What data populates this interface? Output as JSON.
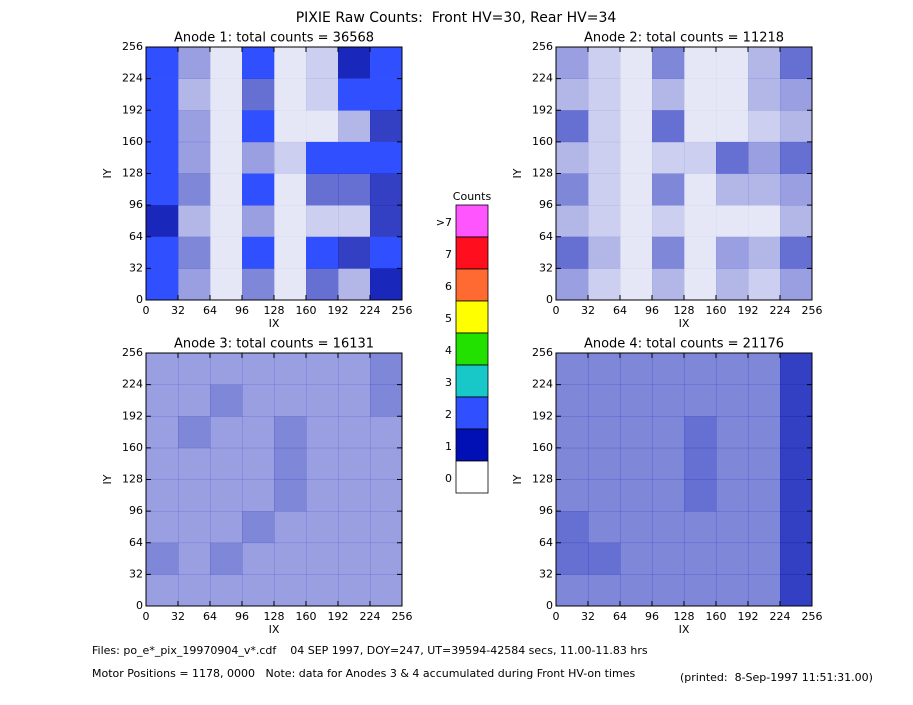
{
  "title": "PIXIE Raw Counts:  Front HV=30, Rear HV=34",
  "chart_data": [
    {
      "type": "heatmap",
      "title": "Anode 1: total counts = 36568",
      "x_label": "IX",
      "y_label": "IY",
      "xlim": [
        0,
        256
      ],
      "ylim": [
        0,
        256
      ],
      "xticks": [
        0,
        32,
        64,
        96,
        128,
        160,
        192,
        224,
        256
      ],
      "yticks": [
        0,
        32,
        64,
        96,
        128,
        160,
        192,
        224,
        256
      ],
      "values": [
        [
          1.6,
          0.4,
          0.1,
          1.2,
          0.1,
          0.2,
          0.9,
          1.3
        ],
        [
          1.0,
          0.3,
          0.1,
          0.6,
          0.1,
          0.2,
          1.0,
          1.0
        ],
        [
          1.5,
          0.4,
          0.1,
          1.3,
          0.1,
          0.1,
          0.3,
          0.8
        ],
        [
          1.0,
          0.4,
          0.1,
          0.4,
          0.2,
          1.3,
          1.2,
          1.4
        ],
        [
          1.5,
          0.5,
          0.1,
          1.2,
          0.1,
          0.6,
          0.6,
          0.8
        ],
        [
          0.9,
          0.3,
          0.1,
          0.4,
          0.1,
          0.2,
          0.2,
          0.8
        ],
        [
          1.6,
          0.5,
          0.1,
          1.2,
          0.1,
          1.1,
          0.8,
          1.2
        ],
        [
          1.1,
          0.4,
          0.1,
          0.5,
          0.1,
          0.6,
          0.3,
          0.9
        ]
      ]
    },
    {
      "type": "heatmap",
      "title": "Anode 2: total counts = 11218",
      "x_label": "IX",
      "y_label": "IY",
      "xlim": [
        0,
        256
      ],
      "ylim": [
        0,
        256
      ],
      "xticks": [
        0,
        32,
        64,
        96,
        128,
        160,
        192,
        224,
        256
      ],
      "yticks": [
        0,
        32,
        64,
        96,
        128,
        160,
        192,
        224,
        256
      ],
      "values": [
        [
          0.4,
          0.2,
          0.1,
          0.5,
          0.1,
          0.1,
          0.3,
          0.6
        ],
        [
          0.3,
          0.2,
          0.1,
          0.3,
          0.1,
          0.1,
          0.3,
          0.4
        ],
        [
          0.6,
          0.2,
          0.1,
          0.6,
          0.1,
          0.1,
          0.2,
          0.3
        ],
        [
          0.3,
          0.2,
          0.1,
          0.2,
          0.2,
          0.6,
          0.4,
          0.6
        ],
        [
          0.5,
          0.2,
          0.1,
          0.5,
          0.1,
          0.3,
          0.3,
          0.4
        ],
        [
          0.3,
          0.2,
          0.1,
          0.2,
          0.1,
          0.1,
          0.1,
          0.3
        ],
        [
          0.6,
          0.3,
          0.1,
          0.5,
          0.1,
          0.4,
          0.3,
          0.6
        ],
        [
          0.4,
          0.2,
          0.1,
          0.3,
          0.1,
          0.3,
          0.2,
          0.4
        ]
      ]
    },
    {
      "type": "heatmap",
      "title": "Anode 3: total counts = 16131",
      "x_label": "IX",
      "y_label": "IY",
      "xlim": [
        0,
        256
      ],
      "ylim": [
        0,
        256
      ],
      "xticks": [
        0,
        32,
        64,
        96,
        128,
        160,
        192,
        224,
        256
      ],
      "yticks": [
        0,
        32,
        64,
        96,
        128,
        160,
        192,
        224,
        256
      ],
      "values": [
        [
          0.4,
          0.4,
          0.4,
          0.4,
          0.4,
          0.4,
          0.4,
          0.5
        ],
        [
          0.4,
          0.4,
          0.5,
          0.4,
          0.4,
          0.4,
          0.4,
          0.5
        ],
        [
          0.4,
          0.5,
          0.4,
          0.4,
          0.5,
          0.4,
          0.4,
          0.4
        ],
        [
          0.4,
          0.4,
          0.4,
          0.4,
          0.5,
          0.4,
          0.4,
          0.4
        ],
        [
          0.4,
          0.4,
          0.4,
          0.4,
          0.5,
          0.4,
          0.4,
          0.4
        ],
        [
          0.4,
          0.4,
          0.4,
          0.5,
          0.4,
          0.4,
          0.4,
          0.4
        ],
        [
          0.5,
          0.4,
          0.5,
          0.4,
          0.4,
          0.4,
          0.4,
          0.4
        ],
        [
          0.4,
          0.4,
          0.4,
          0.4,
          0.4,
          0.4,
          0.4,
          0.4
        ]
      ]
    },
    {
      "type": "heatmap",
      "title": "Anode 4: total counts = 21176",
      "x_label": "IX",
      "y_label": "IY",
      "xlim": [
        0,
        256
      ],
      "ylim": [
        0,
        256
      ],
      "xticks": [
        0,
        32,
        64,
        96,
        128,
        160,
        192,
        224,
        256
      ],
      "yticks": [
        0,
        32,
        64,
        96,
        128,
        160,
        192,
        224,
        256
      ],
      "values": [
        [
          0.5,
          0.5,
          0.5,
          0.5,
          0.5,
          0.5,
          0.5,
          0.8
        ],
        [
          0.5,
          0.5,
          0.5,
          0.5,
          0.5,
          0.5,
          0.5,
          0.8
        ],
        [
          0.5,
          0.5,
          0.5,
          0.5,
          0.6,
          0.5,
          0.5,
          0.8
        ],
        [
          0.5,
          0.5,
          0.5,
          0.5,
          0.6,
          0.5,
          0.5,
          0.8
        ],
        [
          0.5,
          0.5,
          0.5,
          0.5,
          0.6,
          0.5,
          0.5,
          0.8
        ],
        [
          0.6,
          0.5,
          0.5,
          0.5,
          0.5,
          0.5,
          0.5,
          0.8
        ],
        [
          0.6,
          0.6,
          0.5,
          0.5,
          0.5,
          0.5,
          0.5,
          0.8
        ],
        [
          0.5,
          0.5,
          0.5,
          0.5,
          0.5,
          0.5,
          0.5,
          0.8
        ]
      ]
    }
  ],
  "colorbar": {
    "title": "Counts",
    "labels": [
      ">7",
      "7",
      "6",
      "5",
      "4",
      "3",
      "2",
      "1",
      "0"
    ],
    "colors": [
      "#ff55ff",
      "#ff0f1e",
      "#ff6a32",
      "#ffff00",
      "#22e000",
      "#18c8c8",
      "#3050ff",
      "#0010b4",
      "#ffffff"
    ]
  },
  "footer": {
    "files": "Files: po_e*_pix_19970904_v*.cdf    04 SEP 1997, DOY=247, UT=39594-42584 secs, 11.00-11.83 hrs",
    "motor": "Motor Positions = 1178, 0000   Note: data for Anodes 3 & 4 accumulated during Front HV-on times",
    "printed": "(printed:  8-Sep-1997 11:51:31.00)"
  }
}
